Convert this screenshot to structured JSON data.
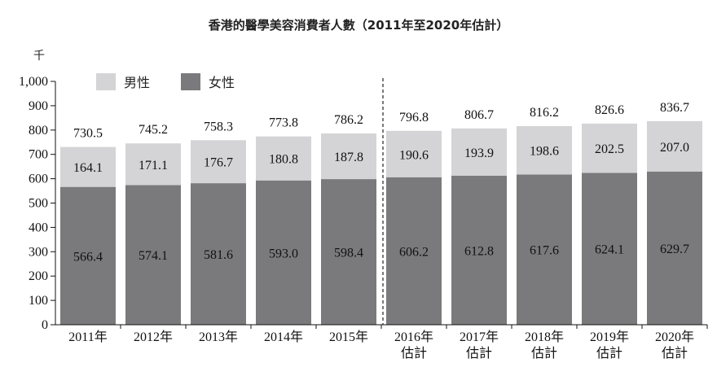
{
  "chart_data": {
    "type": "bar",
    "stacked": true,
    "title": "香港的醫學美容消費者人數（2011年至2020年估計）",
    "ylabel": "千",
    "ylim": [
      0,
      1000
    ],
    "yticks": [
      "0",
      "100",
      "200",
      "300",
      "400",
      "500",
      "600",
      "700",
      "800",
      "900",
      "1,000"
    ],
    "categories": [
      [
        "2011年"
      ],
      [
        "2012年"
      ],
      [
        "2013年"
      ],
      [
        "2014年"
      ],
      [
        "2015年"
      ],
      [
        "2016年",
        "估計"
      ],
      [
        "2017年",
        "估計"
      ],
      [
        "2018年",
        "估計"
      ],
      [
        "2019年",
        "估計"
      ],
      [
        "2020年",
        "估計"
      ]
    ],
    "series": [
      {
        "name": "女性",
        "color": "#7a7a7c",
        "values": [
          566.4,
          574.1,
          581.6,
          593.0,
          598.4,
          606.2,
          612.8,
          617.6,
          624.1,
          629.7
        ],
        "labels": [
          "566.4",
          "574.1",
          "581.6",
          "593.0",
          "598.4",
          "606.2",
          "612.8",
          "617.6",
          "624.1",
          "629.7"
        ]
      },
      {
        "name": "男性",
        "color": "#d4d4d6",
        "values": [
          164.1,
          171.1,
          176.7,
          180.8,
          187.8,
          190.6,
          193.9,
          198.6,
          202.5,
          207.0
        ],
        "labels": [
          "164.1",
          "171.1",
          "176.7",
          "180.8",
          "187.8",
          "190.6",
          "193.9",
          "198.6",
          "202.5",
          "207.0"
        ]
      }
    ],
    "totals": [
      "730.5",
      "745.2",
      "758.3",
      "773.8",
      "786.2",
      "796.8",
      "806.7",
      "816.2",
      "826.6",
      "836.7"
    ],
    "legend": {
      "placement": "top-left",
      "items": [
        "男性",
        "女性"
      ]
    },
    "grid": false,
    "separator_after_category": 5
  }
}
